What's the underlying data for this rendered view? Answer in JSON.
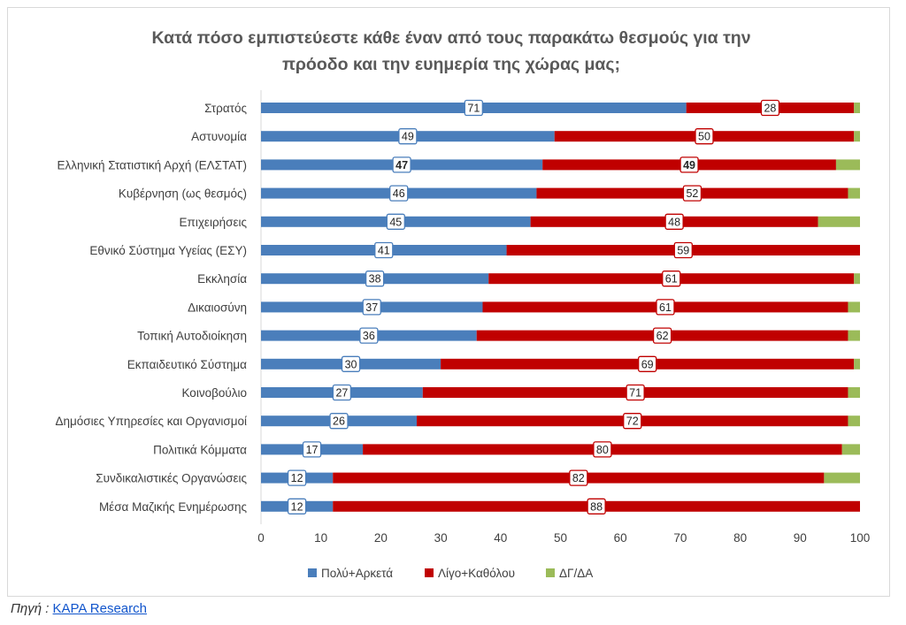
{
  "colors": {
    "pos": "#4a7ebb",
    "neg": "#c00000",
    "dk": "#9bbb59",
    "grid": "#d9d9d9",
    "text": "#404040"
  },
  "source": {
    "label": "Πηγή :",
    "link": "KAPA Research"
  },
  "chart_data": {
    "type": "bar",
    "orientation": "horizontal",
    "stacked": true,
    "title_lines": [
      "Κατά πόσο εμπιστεύεστε κάθε έναν από τους παρακάτω θεσμούς για την",
      "πρόοδο και την ευημερία της χώρας μας;"
    ],
    "categories": [
      "Στρατός",
      "Αστυνομία",
      "Ελληνική Στατιστική Αρχή (ΕΛΣΤΑΤ)",
      "Κυβέρνηση (ως θεσμός)",
      "Επιχειρήσεις",
      "Εθνικό Σύστημα Υγείας (ΕΣΥ)",
      "Εκκλησία",
      "Δικαιοσύνη",
      "Τοπική Αυτοδιοίκηση",
      "Εκπαιδευτικό Σύστημα",
      "Κοινοβούλιο",
      "Δημόσιες Υπηρεσίες και Οργανισμοί",
      "Πολιτικά Κόμματα",
      "Συνδικαλιστικές Οργανώσεις",
      "Μέσα Μαζικής Ενημέρωσης"
    ],
    "series": [
      {
        "name": "Πολύ+Αρκετά",
        "color": "#4a7ebb",
        "values": [
          71,
          49,
          47,
          46,
          45,
          41,
          38,
          37,
          36,
          30,
          27,
          26,
          17,
          12,
          12
        ]
      },
      {
        "name": "Λίγο+Καθόλου",
        "color": "#c00000",
        "values": [
          28,
          50,
          49,
          52,
          48,
          59,
          61,
          61,
          62,
          69,
          71,
          72,
          80,
          82,
          88
        ]
      },
      {
        "name": "ΔΓ/ΔΑ",
        "color": "#9bbb59",
        "values": [
          1,
          1,
          4,
          2,
          7,
          0,
          1,
          2,
          2,
          1,
          2,
          2,
          3,
          6,
          0
        ]
      }
    ],
    "bold_label_rows": [
      "Ελληνική Στατιστική Αρχή (ΕΛΣΤΑΤ)"
    ],
    "xlim": [
      0,
      100
    ],
    "xticks": [
      "0",
      "10",
      "20",
      "30",
      "40",
      "50",
      "60",
      "70",
      "80",
      "90",
      "100"
    ],
    "grid": false,
    "legend_position": "bottom"
  }
}
